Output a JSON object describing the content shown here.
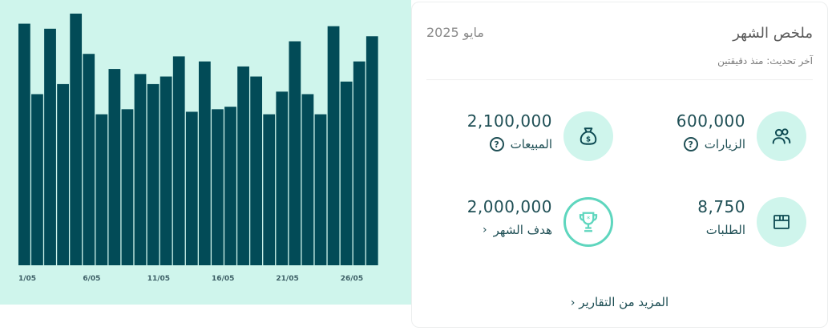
{
  "chart_data": {
    "type": "bar",
    "categories": [
      "1/05",
      "2/05",
      "3/05",
      "4/05",
      "5/05",
      "6/05",
      "7/05",
      "8/05",
      "9/05",
      "10/05",
      "11/05",
      "12/05",
      "13/05",
      "14/05",
      "15/05",
      "16/05",
      "17/05",
      "18/05",
      "19/05",
      "20/05",
      "21/05",
      "22/05",
      "23/05",
      "24/05",
      "25/05",
      "26/05",
      "27/05",
      "28/05"
    ],
    "tick_labels": [
      "1/05",
      "6/05",
      "11/05",
      "16/05",
      "21/05",
      "26/05"
    ],
    "values": [
      96,
      68,
      94,
      72,
      100,
      84,
      60,
      78,
      62,
      76,
      72,
      75,
      83,
      61,
      81,
      62,
      63,
      79,
      75,
      60,
      69,
      89,
      68,
      60,
      95,
      73,
      81,
      91
    ],
    "title": "",
    "xlabel": "",
    "ylabel": "",
    "grid": false,
    "bar_color": "#024b57",
    "background": "#cff5ec"
  },
  "card": {
    "title": "ملخص الشهر",
    "subtitle": "آخر تحديث: منذ دقيقتين",
    "period": "مايو  2025",
    "stats": [
      {
        "value": "600,000",
        "label": "الزيارات",
        "icon": "users-icon",
        "has_help": true
      },
      {
        "value": "2,100,000",
        "label": "المبيعات",
        "icon": "money-bag-icon",
        "has_help": true
      },
      {
        "value": "8,750",
        "label": "الطلبات",
        "icon": "box-icon",
        "has_help": false
      },
      {
        "value": "2,000,000",
        "label": "هدف الشهر",
        "icon": "trophy-icon",
        "has_chevron": true
      }
    ],
    "more_link": "المزيد من التقارير",
    "help_glyph": "?",
    "chevron_glyph": "‹"
  },
  "colors": {
    "accent": "#5ed6be",
    "text": "#1f4f55",
    "circle": "#cff5ec"
  }
}
